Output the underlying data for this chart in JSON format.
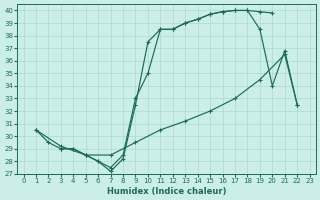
{
  "xlabel": "Humidex (Indice chaleur)",
  "bg_color": "#cceee8",
  "grid_color": "#b0d8d4",
  "line_color": "#1a6b5a",
  "xlim": [
    -0.5,
    23.5
  ],
  "ylim": [
    27,
    40.5
  ],
  "xticks": [
    0,
    1,
    2,
    3,
    4,
    5,
    6,
    7,
    8,
    9,
    10,
    11,
    12,
    13,
    14,
    15,
    16,
    17,
    18,
    19,
    20,
    21,
    22,
    23
  ],
  "yticks": [
    27,
    28,
    29,
    30,
    31,
    32,
    33,
    34,
    35,
    36,
    37,
    38,
    39,
    40
  ],
  "line1_x": [
    1,
    2,
    3,
    4,
    5,
    6,
    7,
    8,
    9,
    10,
    11,
    12,
    13,
    14,
    15,
    16,
    17,
    18,
    19,
    20
  ],
  "line1_y": [
    30.5,
    29.5,
    29.0,
    29.0,
    28.5,
    28.0,
    27.2,
    28.2,
    32.5,
    37.5,
    38.5,
    38.5,
    39.0,
    39.3,
    39.7,
    39.9,
    40.0,
    40.0,
    39.9,
    39.8
  ],
  "line2_x": [
    3,
    4,
    5,
    6,
    7,
    8,
    9,
    10,
    11,
    12,
    13,
    14,
    15,
    16,
    17,
    18,
    19,
    20,
    21,
    22
  ],
  "line2_y": [
    29.0,
    29.0,
    28.5,
    28.0,
    27.5,
    28.5,
    33.0,
    35.0,
    38.5,
    38.5,
    39.0,
    39.3,
    39.7,
    39.9,
    40.0,
    40.0,
    38.5,
    34.0,
    36.8,
    32.5
  ],
  "line3_x": [
    1,
    3,
    5,
    7,
    9,
    11,
    13,
    15,
    17,
    19,
    21,
    22
  ],
  "line3_y": [
    30.5,
    29.2,
    28.5,
    28.5,
    29.5,
    30.5,
    31.2,
    32.0,
    33.0,
    34.5,
    36.5,
    32.5
  ]
}
